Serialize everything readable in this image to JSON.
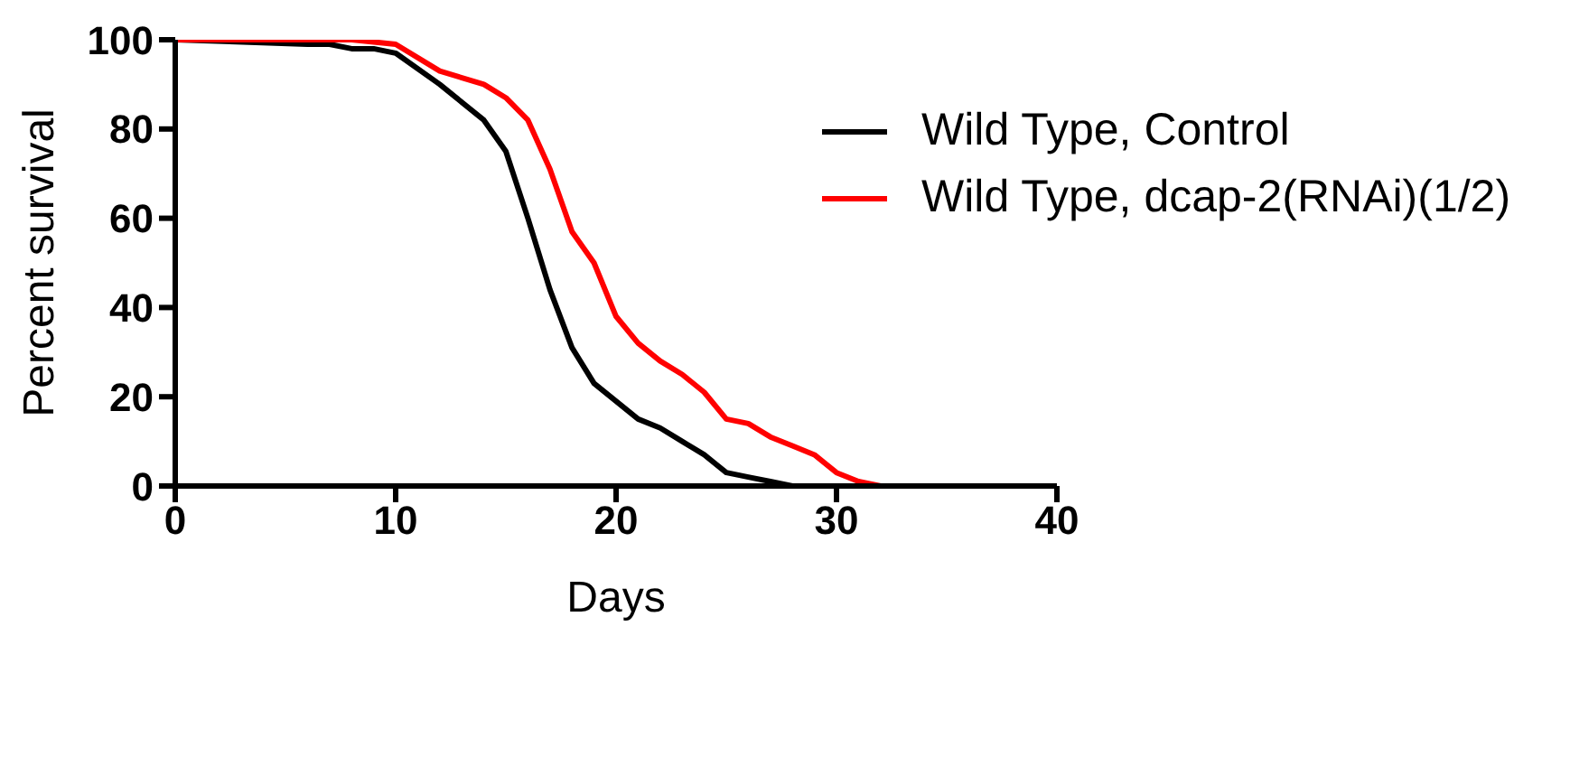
{
  "chart_data": {
    "type": "line",
    "xlabel": "Days",
    "ylabel": "Percent survival",
    "xlim": [
      0,
      40
    ],
    "xticks": [
      0,
      10,
      20,
      30,
      40
    ],
    "ylim": [
      0,
      100
    ],
    "yticks": [
      0,
      20,
      40,
      60,
      80,
      100
    ],
    "legend": "top right",
    "marker": "none",
    "line_style": "solid",
    "series": [
      {
        "name": "Wild Type, Control",
        "color": "#000000",
        "x": [
          0,
          6,
          7,
          8,
          9,
          10,
          12,
          14,
          15,
          16,
          17,
          18,
          19,
          20,
          21,
          22,
          23,
          24,
          25,
          26,
          27,
          28,
          29
        ],
        "values": [
          100,
          99,
          99,
          98,
          98,
          97,
          90,
          82,
          75,
          60,
          44,
          31,
          23,
          19,
          15,
          13,
          10,
          7,
          3,
          2,
          1,
          0,
          0
        ]
      },
      {
        "name": "Wild Type, dcap-2(RNAi)(1/2)",
        "color": "#ff0000",
        "x": [
          0,
          8,
          10,
          12,
          14,
          15,
          16,
          17,
          18,
          19,
          20,
          21,
          22,
          23,
          24,
          25,
          26,
          27,
          28,
          29,
          30,
          31,
          32
        ],
        "values": [
          100,
          100,
          99,
          93,
          90,
          87,
          82,
          71,
          57,
          50,
          38,
          32,
          28,
          25,
          21,
          15,
          14,
          11,
          9,
          7,
          3,
          1,
          0
        ]
      }
    ]
  }
}
